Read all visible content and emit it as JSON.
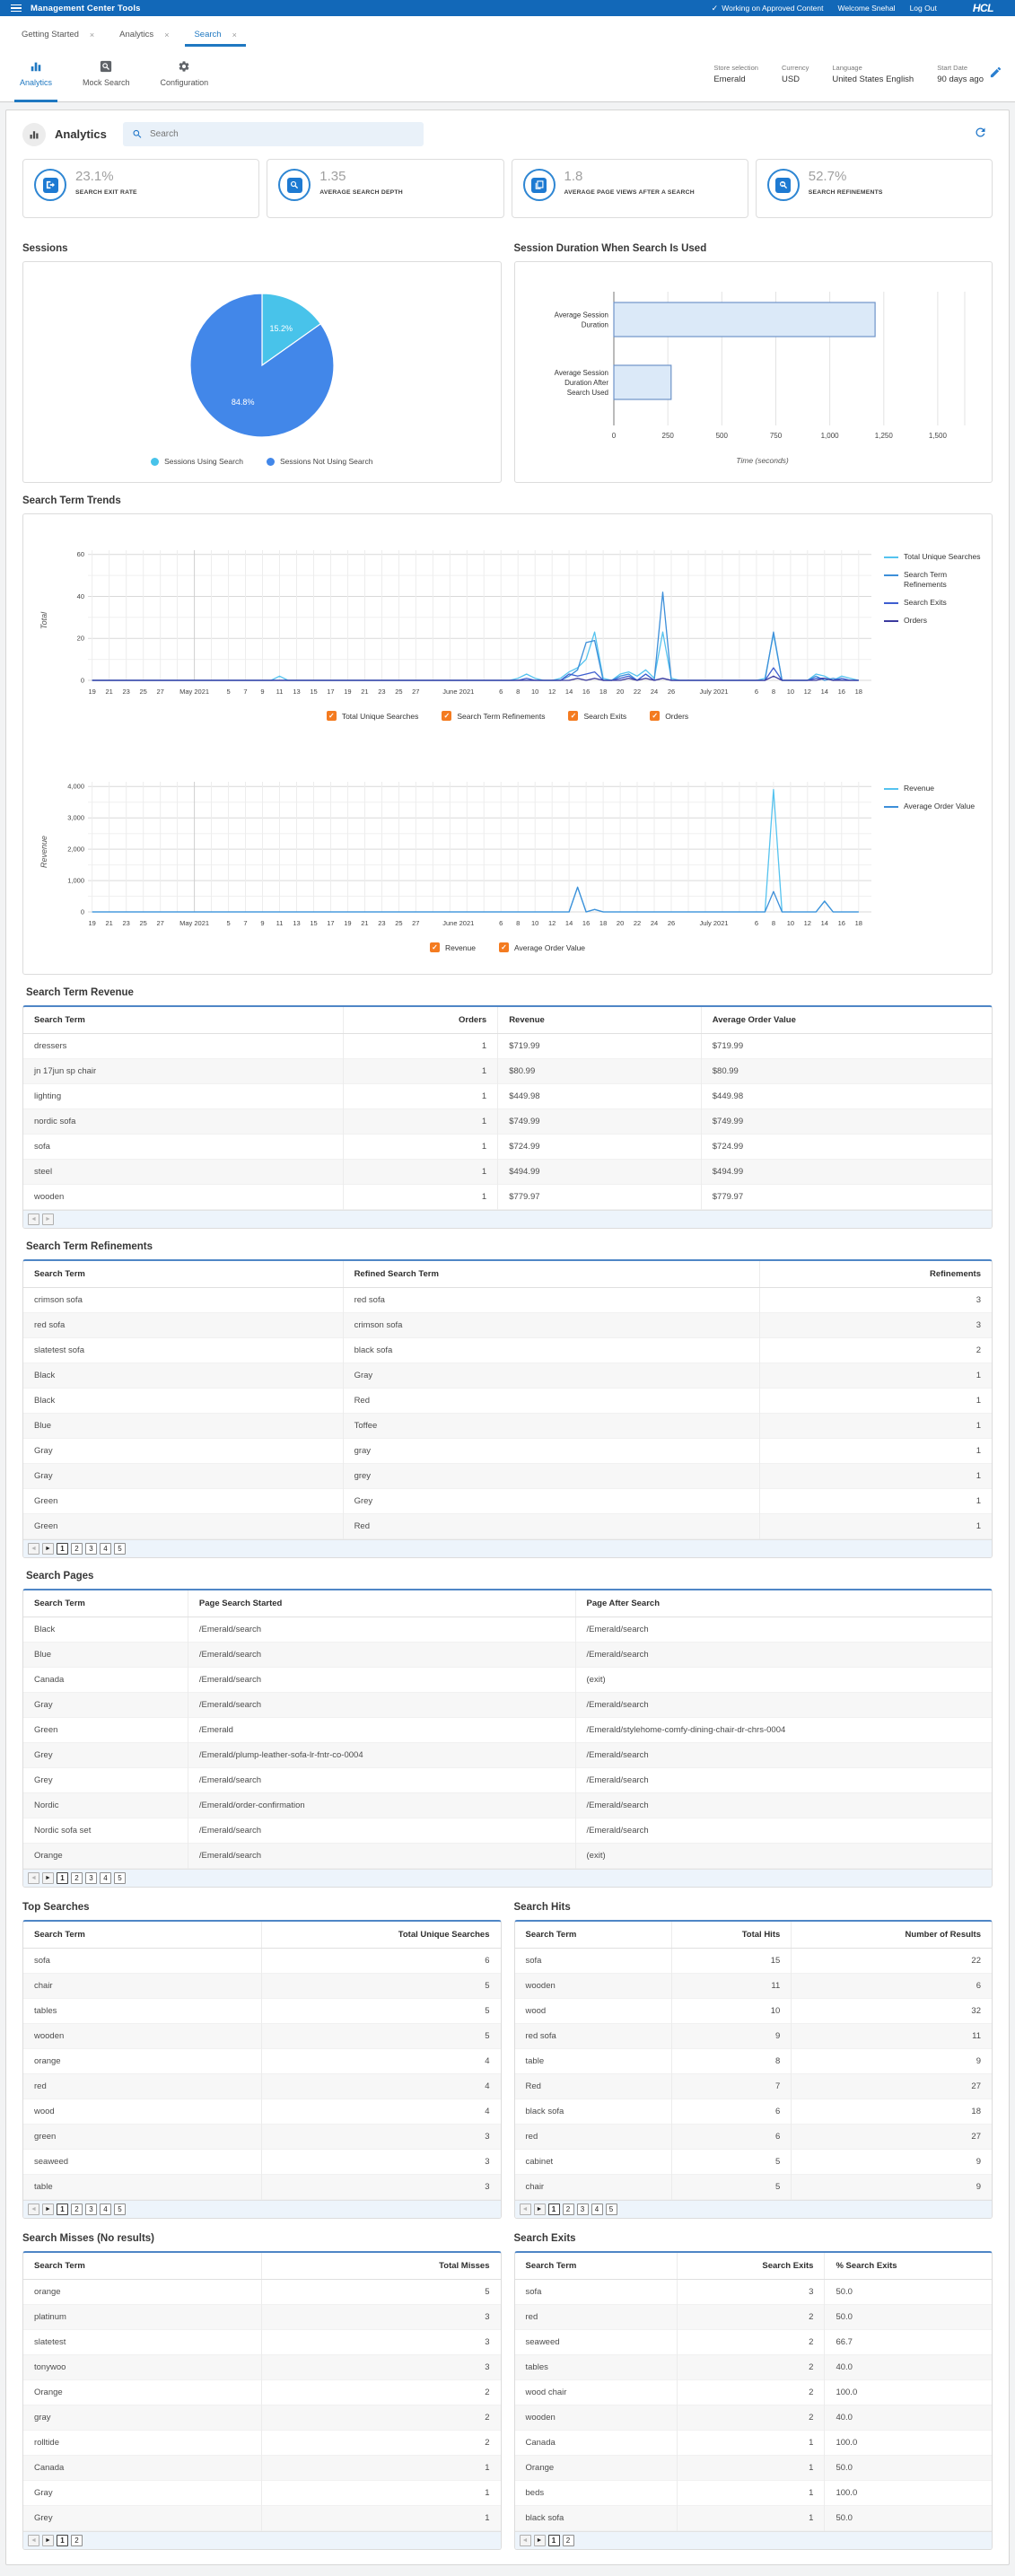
{
  "topbar": {
    "title": "Management Center Tools",
    "status": "Working on Approved Content",
    "welcome": "Welcome Snehal",
    "logout": "Log Out",
    "logo": "HCL",
    "accent": "#1268b8"
  },
  "tabs": [
    {
      "label": "Getting Started",
      "active": false
    },
    {
      "label": "Analytics",
      "active": false
    },
    {
      "label": "Search",
      "active": true
    }
  ],
  "toolbar": {
    "items": [
      {
        "label": "Analytics",
        "icon": "analytics-icon",
        "active": true
      },
      {
        "label": "Mock Search",
        "icon": "mock-search-icon",
        "active": false
      },
      {
        "label": "Configuration",
        "icon": "configuration-icon",
        "active": false
      }
    ],
    "context": [
      {
        "label": "Store selection",
        "value": "Emerald"
      },
      {
        "label": "Currency",
        "value": "USD"
      },
      {
        "label": "Language",
        "value": "United States English"
      },
      {
        "label": "Start Date",
        "value": "90 days ago"
      }
    ]
  },
  "page": {
    "title": "Analytics",
    "search_placeholder": "Search"
  },
  "kpis": [
    {
      "value": "23.1%",
      "label": "SEARCH EXIT RATE",
      "icon": "exit-icon"
    },
    {
      "value": "1.35",
      "label": "AVERAGE SEARCH DEPTH",
      "icon": "search-depth-icon"
    },
    {
      "value": "1.8",
      "label": "AVERAGE PAGE VIEWS AFTER A SEARCH",
      "icon": "page-views-icon"
    },
    {
      "value": "52.7%",
      "label": "SEARCH REFINEMENTS",
      "icon": "refinements-icon"
    }
  ],
  "sections": {
    "sessions": "Sessions",
    "duration": "Session Duration When Search Is Used",
    "trends": "Search Term Trends"
  },
  "chart_data": [
    {
      "type": "pie",
      "title": "Sessions",
      "values": [
        15.2,
        84.8
      ],
      "labels": [
        "15.2%",
        "84.8%"
      ],
      "legend": [
        "Sessions Using Search",
        "Sessions Not Using Search"
      ],
      "colors": [
        "#48c3ea",
        "#4287e9"
      ]
    },
    {
      "type": "bar",
      "title": "Session Duration When Search Is Used",
      "categories": [
        [
          "Average Session",
          "Duration"
        ],
        [
          "Average Session",
          "Duration After",
          "Search Used"
        ]
      ],
      "values": [
        1210,
        265
      ],
      "xlabel": "Time (seconds)",
      "xticks": [
        0,
        250,
        500,
        750,
        1000,
        1250,
        1500
      ],
      "xtick_labels": [
        "0",
        "250",
        "500",
        "750",
        "1,000",
        "1,250",
        "1,500"
      ],
      "xlim": [
        0,
        1625
      ],
      "bar_fill": "#dbe9f8",
      "bar_stroke": "#6f94c9"
    },
    {
      "type": "line",
      "ylabel": "Total",
      "yticks": [
        0,
        20,
        40,
        60
      ],
      "ytick_labels": [
        "0",
        "20",
        "40",
        "60"
      ],
      "ymax": 62,
      "minor": 10,
      "xmin": -0.5,
      "xmax": 91.5,
      "month_days": [
        12,
        43,
        73
      ],
      "xticks": [
        {
          "t": "19",
          "d": 0
        },
        {
          "t": "21",
          "d": 2
        },
        {
          "t": "23",
          "d": 4
        },
        {
          "t": "25",
          "d": 6
        },
        {
          "t": "27",
          "d": 8
        },
        {
          "t": "May 2021",
          "d": 12,
          "m": true
        },
        {
          "t": "5",
          "d": 16
        },
        {
          "t": "7",
          "d": 18
        },
        {
          "t": "9",
          "d": 20
        },
        {
          "t": "11",
          "d": 22
        },
        {
          "t": "13",
          "d": 24
        },
        {
          "t": "15",
          "d": 26
        },
        {
          "t": "17",
          "d": 28
        },
        {
          "t": "19",
          "d": 30
        },
        {
          "t": "21",
          "d": 32
        },
        {
          "t": "23",
          "d": 34
        },
        {
          "t": "25",
          "d": 36
        },
        {
          "t": "27",
          "d": 38
        },
        {
          "t": "June 2021",
          "d": 43,
          "m": true
        },
        {
          "t": "6",
          "d": 48
        },
        {
          "t": "8",
          "d": 50
        },
        {
          "t": "10",
          "d": 52
        },
        {
          "t": "12",
          "d": 54
        },
        {
          "t": "14",
          "d": 56
        },
        {
          "t": "16",
          "d": 58
        },
        {
          "t": "18",
          "d": 60
        },
        {
          "t": "20",
          "d": 62
        },
        {
          "t": "22",
          "d": 64
        },
        {
          "t": "24",
          "d": 66
        },
        {
          "t": "26",
          "d": 68
        },
        {
          "t": "July 2021",
          "d": 73,
          "m": true
        },
        {
          "t": "6",
          "d": 78
        },
        {
          "t": "8",
          "d": 80
        },
        {
          "t": "10",
          "d": 82
        },
        {
          "t": "12",
          "d": 84
        },
        {
          "t": "14",
          "d": 86
        },
        {
          "t": "16",
          "d": 88
        },
        {
          "t": "18",
          "d": 90
        }
      ],
      "series": [
        {
          "name": "Total Unique Searches",
          "color": "#55c3ef",
          "points": {
            "22": 2,
            "50": 1,
            "51": 3,
            "52": 1,
            "55": 1,
            "56": 4,
            "57": 6,
            "58": 10,
            "59": 23,
            "60": 1,
            "62": 3,
            "63": 4,
            "64": 2,
            "65": 5,
            "66": 1,
            "67": 23,
            "68": 1,
            "79": 1,
            "80": 22,
            "85": 3,
            "86": 2,
            "88": 2,
            "89": 1
          }
        },
        {
          "name": "Search Term Refinements",
          "color": "#3d8fd9",
          "points": {
            "56": 2,
            "57": 5,
            "58": 18,
            "59": 19,
            "62": 2,
            "63": 3,
            "65": 3,
            "67": 42,
            "80": 23,
            "85": 2,
            "87": 1
          }
        },
        {
          "name": "Search Exits",
          "color": "#3e5ed0",
          "points": {
            "51": 1,
            "56": 3,
            "57": 2,
            "58": 3,
            "59": 4,
            "62": 1,
            "63": 2,
            "65": 3,
            "67": 1,
            "80": 6,
            "85": 1,
            "86": 1,
            "88": 1
          }
        },
        {
          "name": "Orders",
          "color": "#3b3a9e",
          "points": {
            "57": 1,
            "59": 1,
            "63": 1,
            "65": 1,
            "67": 1,
            "80": 2,
            "86": 1
          }
        }
      ]
    },
    {
      "type": "line",
      "ylabel": "Revenue",
      "yticks": [
        0,
        1000,
        2000,
        3000,
        4000
      ],
      "ytick_labels": [
        "0",
        "1,000",
        "2,000",
        "3,000",
        "4,000"
      ],
      "ymax": 4150,
      "minor": 500,
      "xmin": -0.5,
      "xmax": 91.5,
      "month_days": [
        12,
        43,
        73
      ],
      "xticks": [
        {
          "t": "19",
          "d": 0
        },
        {
          "t": "21",
          "d": 2
        },
        {
          "t": "23",
          "d": 4
        },
        {
          "t": "25",
          "d": 6
        },
        {
          "t": "27",
          "d": 8
        },
        {
          "t": "May 2021",
          "d": 12,
          "m": true
        },
        {
          "t": "5",
          "d": 16
        },
        {
          "t": "7",
          "d": 18
        },
        {
          "t": "9",
          "d": 20
        },
        {
          "t": "11",
          "d": 22
        },
        {
          "t": "13",
          "d": 24
        },
        {
          "t": "15",
          "d": 26
        },
        {
          "t": "17",
          "d": 28
        },
        {
          "t": "19",
          "d": 30
        },
        {
          "t": "21",
          "d": 32
        },
        {
          "t": "23",
          "d": 34
        },
        {
          "t": "25",
          "d": 36
        },
        {
          "t": "27",
          "d": 38
        },
        {
          "t": "June 2021",
          "d": 43,
          "m": true
        },
        {
          "t": "6",
          "d": 48
        },
        {
          "t": "8",
          "d": 50
        },
        {
          "t": "10",
          "d": 52
        },
        {
          "t": "12",
          "d": 54
        },
        {
          "t": "14",
          "d": 56
        },
        {
          "t": "16",
          "d": 58
        },
        {
          "t": "18",
          "d": 60
        },
        {
          "t": "20",
          "d": 62
        },
        {
          "t": "22",
          "d": 64
        },
        {
          "t": "24",
          "d": 66
        },
        {
          "t": "26",
          "d": 68
        },
        {
          "t": "July 2021",
          "d": 73,
          "m": true
        },
        {
          "t": "6",
          "d": 78
        },
        {
          "t": "8",
          "d": 80
        },
        {
          "t": "10",
          "d": 82
        },
        {
          "t": "12",
          "d": 84
        },
        {
          "t": "14",
          "d": 86
        },
        {
          "t": "16",
          "d": 88
        },
        {
          "t": "18",
          "d": 90
        }
      ],
      "series": [
        {
          "name": "Revenue",
          "color": "#55c3ef",
          "points": {
            "57": 790,
            "59": 80,
            "80": 3900,
            "86": 350
          }
        },
        {
          "name": "Average Order Value",
          "color": "#3d8fd9",
          "points": {
            "57": 790,
            "59": 80,
            "80": 650,
            "86": 340
          }
        }
      ]
    }
  ],
  "tables": {
    "revenue": {
      "title": "Search Term Revenue",
      "columns": [
        "Search Term",
        "Orders",
        "Revenue",
        "Average Order Value"
      ],
      "widths": [
        33,
        16,
        21,
        30
      ],
      "align": [
        "l",
        "r",
        "l",
        "l"
      ],
      "rows": [
        [
          "dressers",
          "1",
          "$719.99",
          "$719.99"
        ],
        [
          "jn 17jun sp chair",
          "1",
          "$80.99",
          "$80.99"
        ],
        [
          "lighting",
          "1",
          "$449.98",
          "$449.98"
        ],
        [
          "nordic sofa",
          "1",
          "$749.99",
          "$749.99"
        ],
        [
          "sofa",
          "1",
          "$724.99",
          "$724.99"
        ],
        [
          "steel",
          "1",
          "$494.99",
          "$494.99"
        ],
        [
          "wooden",
          "1",
          "$779.97",
          "$779.97"
        ]
      ],
      "pages": []
    },
    "refinements": {
      "title": "Search Term Refinements",
      "columns": [
        "Search Term",
        "Refined Search Term",
        "Refinements"
      ],
      "widths": [
        33,
        43,
        24
      ],
      "align": [
        "l",
        "l",
        "r"
      ],
      "rows": [
        [
          "crimson sofa",
          "red sofa",
          "3"
        ],
        [
          "red sofa",
          "crimson sofa",
          "3"
        ],
        [
          "slatetest sofa",
          "black sofa",
          "2"
        ],
        [
          "Black",
          "Gray",
          "1"
        ],
        [
          "Black",
          "Red",
          "1"
        ],
        [
          "Blue",
          "Toffee",
          "1"
        ],
        [
          "Gray",
          "gray",
          "1"
        ],
        [
          "Gray",
          "grey",
          "1"
        ],
        [
          "Green",
          "Grey",
          "1"
        ],
        [
          "Green",
          "Red",
          "1"
        ]
      ],
      "pages": [
        "1",
        "2",
        "3",
        "4",
        "5"
      ]
    },
    "pages": {
      "title": "Search Pages",
      "columns": [
        "Search Term",
        "Page Search Started",
        "Page After Search"
      ],
      "widths": [
        17,
        40,
        43
      ],
      "align": [
        "l",
        "l",
        "l"
      ],
      "rows": [
        [
          "Black",
          "/Emerald/search",
          "/Emerald/search"
        ],
        [
          "Blue",
          "/Emerald/search",
          "/Emerald/search"
        ],
        [
          "Canada",
          "/Emerald/search",
          "(exit)"
        ],
        [
          "Gray",
          "/Emerald/search",
          "/Emerald/search"
        ],
        [
          "Green",
          "/Emerald",
          "/Emerald/stylehome-comfy-dining-chair-dr-chrs-0004"
        ],
        [
          "Grey",
          "/Emerald/plump-leather-sofa-lr-fntr-co-0004",
          "/Emerald/search"
        ],
        [
          "Grey",
          "/Emerald/search",
          "/Emerald/search"
        ],
        [
          "Nordic",
          "/Emerald/order-confirmation",
          "/Emerald/search"
        ],
        [
          "Nordic sofa set",
          "/Emerald/search",
          "/Emerald/search"
        ],
        [
          "Orange",
          "/Emerald/search",
          "(exit)"
        ]
      ],
      "pages": [
        "1",
        "2",
        "3",
        "4",
        "5"
      ]
    },
    "top_searches": {
      "title": "Top Searches",
      "columns": [
        "Search Term",
        "Total Unique Searches"
      ],
      "widths": [
        50,
        50
      ],
      "align": [
        "l",
        "r"
      ],
      "rows": [
        [
          "sofa",
          "6"
        ],
        [
          "chair",
          "5"
        ],
        [
          "tables",
          "5"
        ],
        [
          "wooden",
          "5"
        ],
        [
          "orange",
          "4"
        ],
        [
          "red",
          "4"
        ],
        [
          "wood",
          "4"
        ],
        [
          "green",
          "3"
        ],
        [
          "seaweed",
          "3"
        ],
        [
          "table",
          "3"
        ]
      ],
      "pages": [
        "1",
        "2",
        "3",
        "4",
        "5"
      ]
    },
    "hits": {
      "title": "Search Hits",
      "columns": [
        "Search Term",
        "Total Hits",
        "Number of Results"
      ],
      "widths": [
        33,
        25,
        42
      ],
      "align": [
        "l",
        "r",
        "r"
      ],
      "rows": [
        [
          "sofa",
          "15",
          "22"
        ],
        [
          "wooden",
          "11",
          "6"
        ],
        [
          "wood",
          "10",
          "32"
        ],
        [
          "red sofa",
          "9",
          "11"
        ],
        [
          "table",
          "8",
          "9"
        ],
        [
          "Red",
          "7",
          "27"
        ],
        [
          "black sofa",
          "6",
          "18"
        ],
        [
          "red",
          "6",
          "27"
        ],
        [
          "cabinet",
          "5",
          "9"
        ],
        [
          "chair",
          "5",
          "9"
        ]
      ],
      "pages": [
        "1",
        "2",
        "3",
        "4",
        "5"
      ]
    },
    "misses": {
      "title": "Search Misses (No results)",
      "columns": [
        "Search Term",
        "Total Misses"
      ],
      "widths": [
        50,
        50
      ],
      "align": [
        "l",
        "r"
      ],
      "rows": [
        [
          "orange",
          "5"
        ],
        [
          "platinum",
          "3"
        ],
        [
          "slatetest",
          "3"
        ],
        [
          "tonywoo",
          "3"
        ],
        [
          "Orange",
          "2"
        ],
        [
          "gray",
          "2"
        ],
        [
          "rolltide",
          "2"
        ],
        [
          "Canada",
          "1"
        ],
        [
          "Gray",
          "1"
        ],
        [
          "Grey",
          "1"
        ]
      ],
      "pages": [
        "1",
        "2"
      ]
    },
    "exits": {
      "title": "Search Exits",
      "columns": [
        "Search Term",
        "Search Exits",
        "% Search Exits"
      ],
      "widths": [
        34,
        31,
        35
      ],
      "align": [
        "l",
        "r",
        "l"
      ],
      "rows": [
        [
          "sofa",
          "3",
          "50.0"
        ],
        [
          "red",
          "2",
          "50.0"
        ],
        [
          "seaweed",
          "2",
          "66.7"
        ],
        [
          "tables",
          "2",
          "40.0"
        ],
        [
          "wood chair",
          "2",
          "100.0"
        ],
        [
          "wooden",
          "2",
          "40.0"
        ],
        [
          "Canada",
          "1",
          "100.0"
        ],
        [
          "Orange",
          "1",
          "50.0"
        ],
        [
          "beds",
          "1",
          "100.0"
        ],
        [
          "black sofa",
          "1",
          "50.0"
        ]
      ],
      "pages": [
        "1",
        "2"
      ]
    }
  },
  "pager_glyphs": {
    "prev": "◄",
    "next": "►"
  },
  "checkbox_glyph": "✓"
}
